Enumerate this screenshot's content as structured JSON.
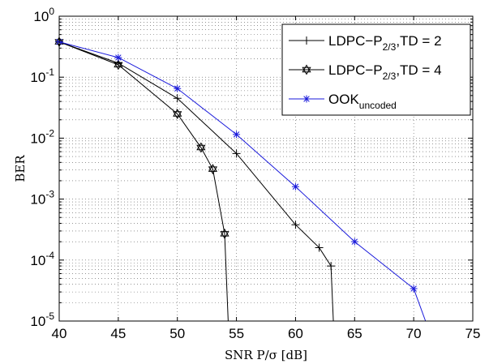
{
  "chart_data": {
    "type": "line",
    "xlabel": "SNR P/σ  [dB]",
    "ylabel": "BER",
    "x_ticks": [
      40,
      45,
      50,
      55,
      60,
      65,
      70,
      75
    ],
    "y_ticks": [
      1e-05,
      0.0001,
      0.001,
      0.01,
      0.1,
      1
    ],
    "y_tick_labels": [
      "10",
      "10",
      "10",
      "10",
      "10",
      "10"
    ],
    "y_tick_exponents": [
      "-5",
      "-4",
      "-3",
      "-2",
      "-1",
      "0"
    ],
    "xlim": [
      40,
      75
    ],
    "ylim": [
      1e-05,
      1
    ],
    "yscale": "log",
    "grid": true,
    "legend_position": "top-right",
    "series": [
      {
        "name": "LDPC-P2/3,TD = 2",
        "legend_main": "LDPC−P",
        "legend_sub": "2/3",
        "legend_tail": ",TD = 2",
        "color": "#000000",
        "marker": "plus",
        "x": [
          40,
          45,
          50,
          55,
          60,
          62,
          63,
          63.2
        ],
        "y": [
          0.38,
          0.17,
          0.045,
          0.0056,
          0.00038,
          0.00016,
          8e-05,
          1e-05
        ]
      },
      {
        "name": "LDPC-P2/3,TD = 4",
        "legend_main": "LDPC−P",
        "legend_sub": "2/3",
        "legend_tail": ",TD = 4",
        "color": "#000000",
        "marker": "hexagram",
        "x": [
          40,
          45,
          50,
          52,
          53,
          54,
          54.3
        ],
        "y": [
          0.38,
          0.16,
          0.025,
          0.007,
          0.0031,
          0.00027,
          1e-05
        ]
      },
      {
        "name": "OOKuncoded",
        "legend_main": "OOK",
        "legend_sub": "uncoded",
        "legend_tail": "",
        "color": "#1a1adb",
        "marker": "star",
        "x": [
          40,
          45,
          50,
          55,
          60,
          65,
          70,
          71
        ],
        "y": [
          0.38,
          0.21,
          0.065,
          0.0115,
          0.0016,
          0.0002,
          3.4e-05,
          1e-05
        ]
      }
    ]
  }
}
